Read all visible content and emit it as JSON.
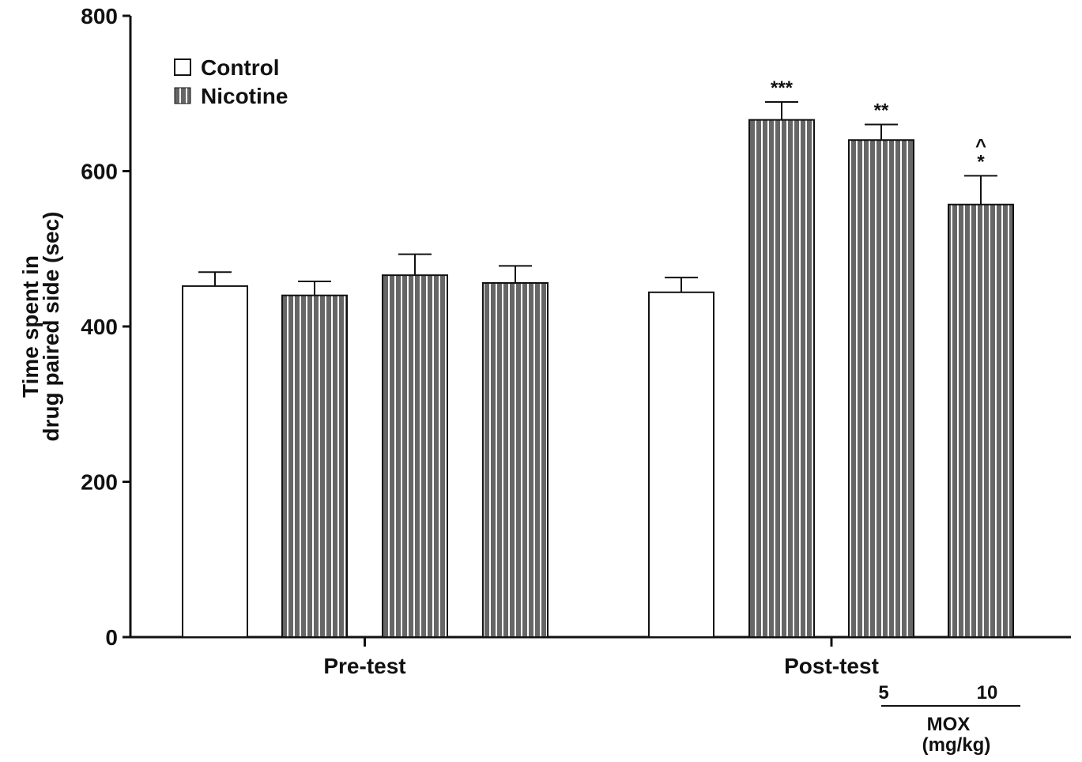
{
  "chart_data": {
    "type": "bar",
    "ylabel_lines": [
      "Time spent in",
      "drug paired side (sec)"
    ],
    "ylim": [
      0,
      800
    ],
    "yticks": [
      0,
      200,
      400,
      600,
      800
    ],
    "groups": [
      {
        "label": "Pre-test",
        "center_index": 1.5
      },
      {
        "label": "Post-test",
        "center_index": 5.5
      }
    ],
    "bars": [
      {
        "series": "Control",
        "value": 452,
        "error": 18,
        "annotation": ""
      },
      {
        "series": "Nicotine",
        "value": 440,
        "error": 18,
        "annotation": ""
      },
      {
        "series": "Nicotine",
        "value": 466,
        "error": 27,
        "annotation": ""
      },
      {
        "series": "Nicotine",
        "value": 456,
        "error": 22,
        "annotation": ""
      },
      {
        "series": "Control",
        "value": 444,
        "error": 19,
        "annotation": ""
      },
      {
        "series": "Nicotine",
        "value": 666,
        "error": 23,
        "annotation": "***"
      },
      {
        "series": "Nicotine",
        "value": 640,
        "error": 20,
        "annotation": "**"
      },
      {
        "series": "Nicotine",
        "value": 557,
        "error": 37,
        "annotation": "*",
        "annotation2": "^"
      }
    ],
    "legend": {
      "placement": "top-left",
      "entries": [
        {
          "name": "Control",
          "style": "open"
        },
        {
          "name": "Nicotine",
          "style": "striped"
        }
      ]
    },
    "dose_labels": [
      {
        "text": "5",
        "bar_index": 6
      },
      {
        "text": "10",
        "bar_index": 7
      }
    ],
    "dose_caption_lines": [
      "MOX",
      "(mg/kg)"
    ],
    "colors": {
      "striped_fill": "#666666",
      "stripe": "#ffffff",
      "open_fill": "#ffffff",
      "stroke": "#111111"
    }
  }
}
